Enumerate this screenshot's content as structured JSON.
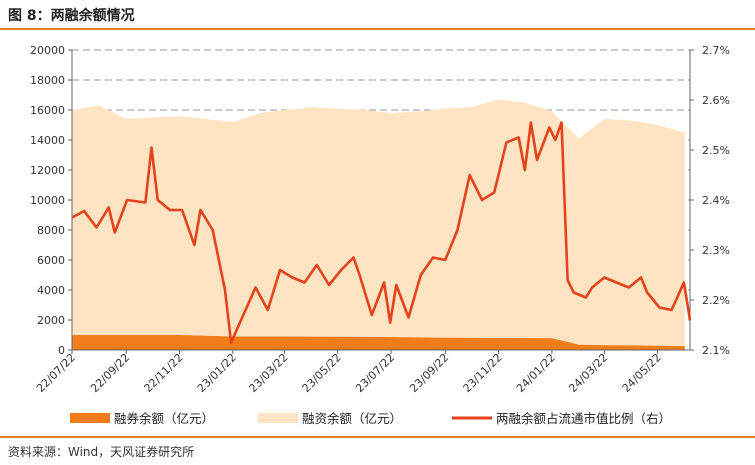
{
  "header": {
    "title": "图 8：两融余额情况"
  },
  "footer": {
    "source": "资料来源：Wind，天风证券研究所"
  },
  "colors": {
    "accent": "#e87c1e",
    "financing_balance": "#ffe4c4",
    "margin_balance": "#f07d1a",
    "ratio_line": "#e3421b"
  },
  "chart_data": {
    "type": "area",
    "title": "两融余额情况",
    "left_axis": {
      "ylim": [
        0,
        20000
      ],
      "ticks": [
        "0",
        "2000",
        "4000",
        "6000",
        "8000",
        "10000",
        "12000",
        "14000",
        "16000",
        "18000",
        "20000"
      ]
    },
    "right_axis": {
      "ylim": [
        2.1,
        2.7
      ],
      "ticks": [
        "2.1%",
        "2.2%",
        "2.3%",
        "2.4%",
        "2.5%",
        "2.6%",
        "2.7%"
      ]
    },
    "x_ticks": [
      "22/07/22",
      "22/09/22",
      "22/11/22",
      "23/01/22",
      "23/03/22",
      "23/05/22",
      "23/07/22",
      "23/09/22",
      "23/11/22",
      "24/01/22",
      "24/03/22",
      "24/05/22"
    ],
    "grid": "horizontal dashed",
    "legend_position": "bottom",
    "series": [
      {
        "name": "融券余额（亿元）",
        "axis": "left",
        "kind": "area",
        "x": [
          "22/07/22",
          "22/09/22",
          "22/11/22",
          "23/01/22",
          "23/03/22",
          "23/05/22",
          "23/07/22",
          "23/09/22",
          "23/11/22",
          "24/01/22",
          "24/02/22",
          "24/03/22",
          "24/05/22",
          "24/06/22"
        ],
        "values": [
          1000,
          1000,
          1000,
          900,
          900,
          880,
          860,
          820,
          800,
          780,
          350,
          320,
          280,
          260
        ]
      },
      {
        "name": "融资余额（亿元）",
        "axis": "left",
        "kind": "area",
        "x": [
          "22/07/22",
          "22/08/22",
          "22/09/22",
          "22/10/22",
          "22/11/22",
          "22/12/22",
          "23/01/22",
          "23/02/22",
          "23/03/22",
          "23/04/22",
          "23/05/22",
          "23/06/22",
          "23/07/22",
          "23/08/22",
          "23/09/22",
          "23/10/22",
          "23/11/22",
          "23/12/22",
          "24/01/22",
          "24/02/22",
          "24/03/22",
          "24/04/22",
          "24/05/22",
          "24/06/22"
        ],
        "values": [
          16000,
          16300,
          15400,
          15500,
          15600,
          15400,
          15200,
          15800,
          16000,
          16200,
          16100,
          16000,
          15800,
          15900,
          16100,
          16200,
          16700,
          16500,
          15900,
          14100,
          15400,
          15300,
          15000,
          14500
        ]
      },
      {
        "name": "两融余额占流通市值比例（右）",
        "axis": "right",
        "kind": "line",
        "x": [
          "22/07/22",
          "22/08/05",
          "22/08/19",
          "22/09/02",
          "22/09/09",
          "22/09/23",
          "22/10/14",
          "22/10/21",
          "22/10/28",
          "22/11/11",
          "22/11/25",
          "22/12/09",
          "22/12/16",
          "22/12/30",
          "23/01/13",
          "23/01/20",
          "23/02/03",
          "23/02/17",
          "23/03/03",
          "23/03/17",
          "23/03/31",
          "23/04/14",
          "23/04/28",
          "23/05/12",
          "23/05/26",
          "23/06/09",
          "23/06/16",
          "23/06/30",
          "23/07/14",
          "23/07/21",
          "23/07/28",
          "23/08/11",
          "23/08/25",
          "23/09/08",
          "23/09/22",
          "23/10/06",
          "23/10/20",
          "23/11/03",
          "23/11/17",
          "23/12/01",
          "23/12/15",
          "23/12/22",
          "23/12/29",
          "24/01/05",
          "24/01/19",
          "24/01/26",
          "24/02/02",
          "24/02/09",
          "24/02/16",
          "24/03/01",
          "24/03/08",
          "24/03/22",
          "24/04/05",
          "24/04/19",
          "24/05/03",
          "24/05/10",
          "24/05/24",
          "24/06/07",
          "24/06/21",
          "24/06/28"
        ],
        "values": [
          2.365,
          2.378,
          2.345,
          2.385,
          2.335,
          2.4,
          2.395,
          2.505,
          2.4,
          2.38,
          2.38,
          2.31,
          2.38,
          2.34,
          2.22,
          2.115,
          2.17,
          2.225,
          2.18,
          2.26,
          2.245,
          2.235,
          2.27,
          2.23,
          2.26,
          2.285,
          2.25,
          2.17,
          2.235,
          2.155,
          2.23,
          2.165,
          2.25,
          2.285,
          2.28,
          2.34,
          2.45,
          2.4,
          2.415,
          2.515,
          2.525,
          2.46,
          2.555,
          2.48,
          2.545,
          2.52,
          2.555,
          2.24,
          2.215,
          2.205,
          2.225,
          2.245,
          2.235,
          2.225,
          2.245,
          2.215,
          2.185,
          2.18,
          2.235,
          2.16
        ]
      }
    ]
  }
}
